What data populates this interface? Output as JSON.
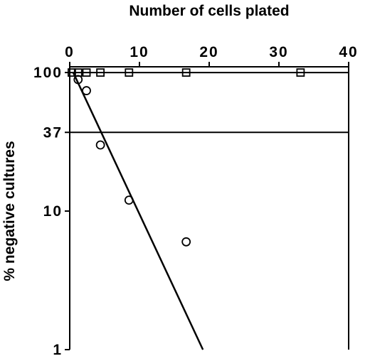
{
  "chart_data": {
    "type": "scatter",
    "xlabel": "Number of cells plated",
    "ylabel": "% negative cultures",
    "xlim": [
      0,
      40
    ],
    "xticks": [
      0,
      10,
      20,
      30,
      40
    ],
    "ylim": [
      1,
      110
    ],
    "yscale": "log",
    "yticks": [
      1,
      10,
      37,
      100
    ],
    "hlines": [
      100,
      37
    ],
    "color": "#000000",
    "series": [
      {
        "marker": "square",
        "x": [
          0.3,
          1.2,
          2.4,
          4.4,
          8.5,
          16.7,
          33.1
        ],
        "values": [
          100,
          100,
          100,
          100,
          100,
          100,
          100
        ]
      },
      {
        "marker": "circle",
        "x": [
          1.2,
          2.4,
          4.4,
          8.5,
          16.7
        ],
        "values": [
          89,
          74,
          30,
          12,
          6
        ]
      },
      {
        "marker": "line",
        "x": [
          0.5,
          19.1
        ],
        "values": [
          100,
          1
        ]
      }
    ]
  }
}
